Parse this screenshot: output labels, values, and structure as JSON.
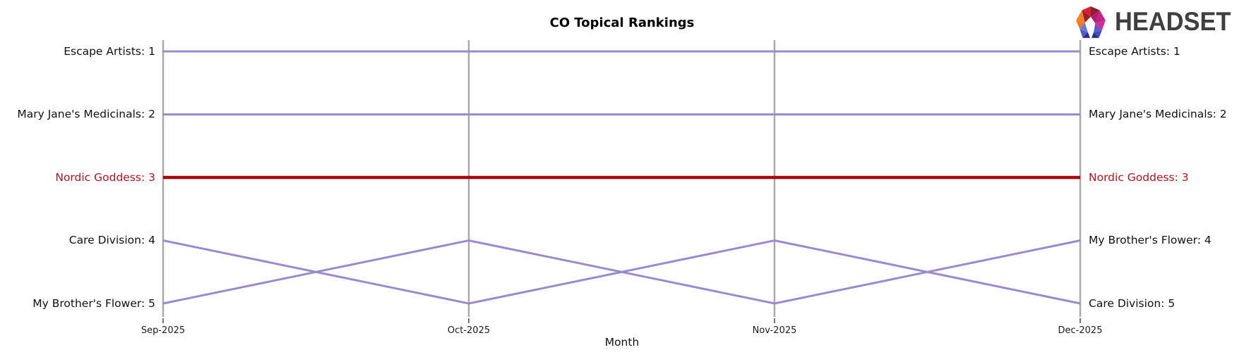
{
  "title": "CO Topical Rankings",
  "x_axis_title": "Month",
  "logo": {
    "text": "HEADSET"
  },
  "colors": {
    "line_default": "#9a8bd0",
    "line_highlight": "#a9060c",
    "axis_line": "#a9a9a9",
    "tick_mark": "#444444",
    "text": "#111111",
    "text_highlight": "#b9121b",
    "logo_text": "#3f3f41"
  },
  "labels": {
    "left": [
      "Escape Artists: 1",
      "Mary Jane's Medicinals: 2",
      "Nordic Goddess: 3",
      "Care Division: 4",
      "My Brother's Flower: 5"
    ],
    "right": [
      "Escape Artists: 1",
      "Mary Jane's Medicinals: 2",
      "Nordic Goddess: 3",
      "My Brother's Flower: 4",
      "Care Division: 5"
    ]
  },
  "chart_data": {
    "type": "line",
    "subtype": "bump-ranking",
    "title": "CO Topical Rankings",
    "xlabel": "Month",
    "x": [
      "Sep-2025",
      "Oct-2025",
      "Nov-2025",
      "Dec-2025"
    ],
    "y_axis": "rank",
    "ylim": [
      1,
      5
    ],
    "y_inverted": true,
    "grid": "vertical-only",
    "legend": "inline-edge-labels",
    "series": [
      {
        "name": "Escape Artists",
        "values": [
          1,
          1,
          1,
          1
        ],
        "highlighted": false
      },
      {
        "name": "Mary Jane's Medicinals",
        "values": [
          2,
          2,
          2,
          2
        ],
        "highlighted": false
      },
      {
        "name": "Nordic Goddess",
        "values": [
          3,
          3,
          3,
          3
        ],
        "highlighted": true
      },
      {
        "name": "Care Division",
        "values": [
          4,
          5,
          4,
          5
        ],
        "highlighted": false
      },
      {
        "name": "My Brother's Flower",
        "values": [
          5,
          4,
          5,
          4
        ],
        "highlighted": false
      }
    ]
  }
}
